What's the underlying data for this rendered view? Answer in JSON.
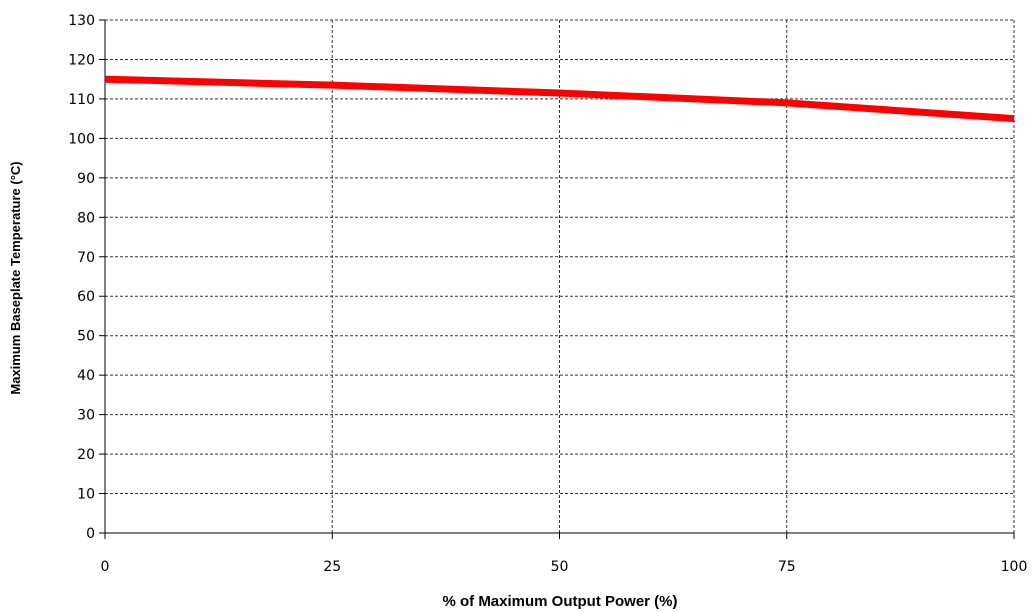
{
  "chart_data": {
    "type": "line",
    "title": "",
    "xlabel": "% of Maximum Output Power (%)",
    "ylabel": "Maximum Baseplate Temperature (°C)",
    "xlim": [
      0,
      100
    ],
    "ylim": [
      0,
      130
    ],
    "xticks": [
      0,
      25,
      50,
      75,
      100
    ],
    "yticks": [
      0,
      10,
      20,
      30,
      40,
      50,
      60,
      70,
      80,
      90,
      100,
      110,
      120,
      130
    ],
    "grid": true,
    "legend": "none",
    "series": [
      {
        "color": "#ff0000",
        "x": [
          0,
          25,
          50,
          75,
          100
        ],
        "y": [
          115,
          113.5,
          111.5,
          109,
          105
        ]
      }
    ]
  }
}
